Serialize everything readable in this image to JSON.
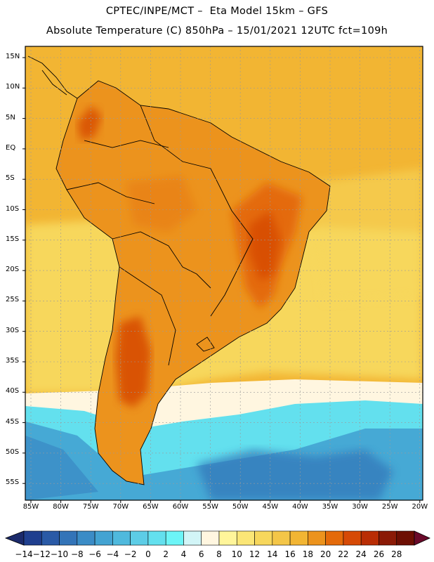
{
  "header": {
    "line1": "CPTEC/INPE/MCT –  Eta Model 15km – GFS",
    "line2": "Absolute Temperature (C) 850hPa – 15/01/2021 12UTC fct=109h"
  },
  "lat_labels": [
    "15N",
    "10N",
    "5N",
    "EQ",
    "5S",
    "10S",
    "15S",
    "20S",
    "25S",
    "30S",
    "35S",
    "40S",
    "45S",
    "50S",
    "55S"
  ],
  "lon_labels": [
    "85W",
    "80W",
    "75W",
    "70W",
    "65W",
    "60W",
    "55W",
    "50W",
    "45W",
    "40W",
    "35W",
    "30W",
    "25W",
    "20W"
  ],
  "colorbar": {
    "labels": [
      "-14",
      "-12",
      "-10",
      "-8",
      "-6",
      "-4",
      "-2",
      "0",
      "2",
      "4",
      "6",
      "8",
      "10",
      "12",
      "14",
      "16",
      "18",
      "20",
      "22",
      "24",
      "26",
      "28"
    ],
    "colors": [
      "#1f3f8f",
      "#2a5aa6",
      "#3374b8",
      "#3b8cc6",
      "#43a3d2",
      "#4fb9dd",
      "#5dcde6",
      "#63e0ee",
      "#6cf5f7",
      "#d2f5f7",
      "#fff6e0",
      "#fff59a",
      "#fbe676",
      "#f7d75c",
      "#f4c648",
      "#f2b533",
      "#ec931d",
      "#e46a0a",
      "#d64a06",
      "#b92d05",
      "#8b1a06",
      "#6d0f03"
    ],
    "low_arrow_color": "#1b2a6b",
    "high_arrow_color": "#6a0a2a"
  },
  "colors": {
    "ocean_warm": "#f2b533",
    "ocean_mid": "#f7d75c",
    "land": "#ec931d",
    "land_hot": "#e46a0a",
    "cold1": "#fff6e0",
    "cold2": "#63e0ee",
    "cold3": "#43a3d2",
    "cold4": "#3374b8"
  }
}
